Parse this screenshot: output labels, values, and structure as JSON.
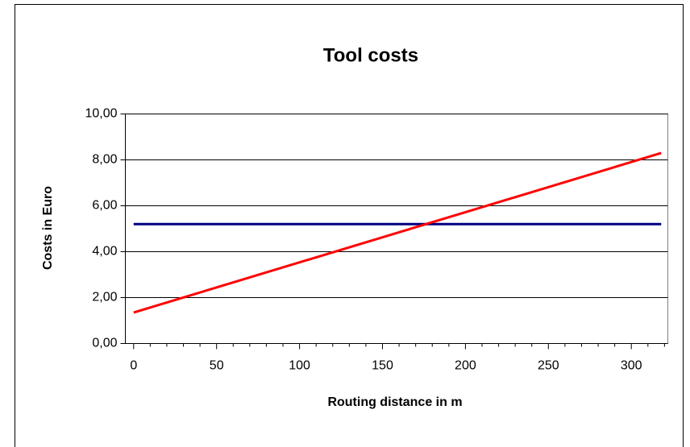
{
  "chart_data": {
    "type": "line",
    "title": "Tool costs",
    "xlabel": "Routing distance in m",
    "ylabel": "Costs in Euro",
    "x": [
      0,
      318
    ],
    "series": [
      {
        "color": "#000080",
        "values": [
          5.2,
          5.2
        ]
      },
      {
        "color": "#ff0000",
        "values": [
          1.35,
          8.3
        ]
      }
    ],
    "xlim": [
      -5,
      322
    ],
    "xticks": [
      0,
      50,
      100,
      150,
      200,
      250,
      300
    ],
    "ylim": [
      0,
      10
    ],
    "yticks": [
      {
        "value": 0,
        "label": "0,00"
      },
      {
        "value": 2,
        "label": "2,00"
      },
      {
        "value": 4,
        "label": "4,00"
      },
      {
        "value": 6,
        "label": "6,00"
      },
      {
        "value": 8,
        "label": "8,00"
      },
      {
        "value": 10,
        "label": "10,00"
      }
    ],
    "grid": true
  }
}
